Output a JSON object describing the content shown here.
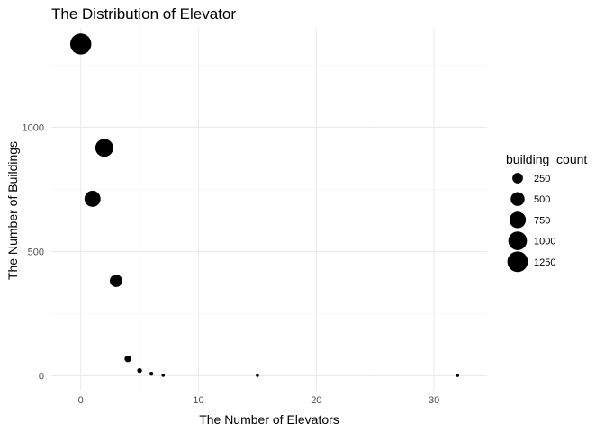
{
  "chart_data": {
    "type": "scatter",
    "title": "The Distribution of Elevator",
    "xlabel": "The Number of Elevators",
    "ylabel": "The Number of Buildings",
    "xlim": [
      -2.5,
      34.5
    ],
    "ylim": [
      -60,
      1400
    ],
    "x_ticks": [
      0,
      10,
      20,
      30
    ],
    "y_ticks": [
      0,
      500,
      1000
    ],
    "grid": true,
    "size_legend": {
      "title": "building_count",
      "values": [
        250,
        500,
        750,
        1000,
        1250
      ],
      "position": "right"
    },
    "points": [
      {
        "x": 0,
        "y": 1335
      },
      {
        "x": 1,
        "y": 712
      },
      {
        "x": 2,
        "y": 917
      },
      {
        "x": 3,
        "y": 382
      },
      {
        "x": 4,
        "y": 68
      },
      {
        "x": 5,
        "y": 21
      },
      {
        "x": 6,
        "y": 8
      },
      {
        "x": 7,
        "y": 2
      },
      {
        "x": 15,
        "y": 1
      },
      {
        "x": 32,
        "y": 1
      }
    ]
  }
}
